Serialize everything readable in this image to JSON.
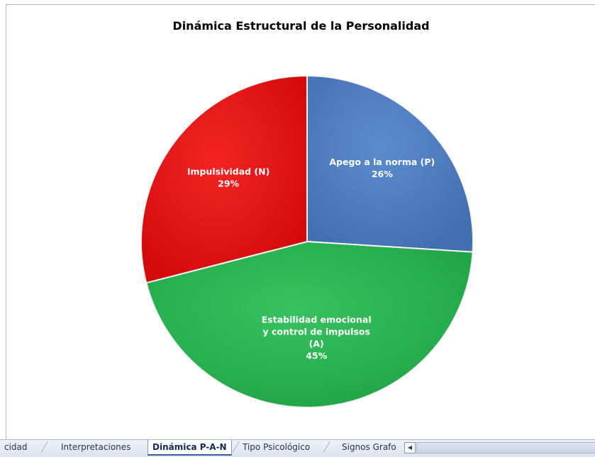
{
  "chart_data": {
    "type": "pie",
    "title": "Dinámica Estructural de la Personalidad",
    "slices": [
      {
        "label_lines": [
          "Apego a la norma (P)"
        ],
        "value": 26,
        "percent_label": "26%",
        "color": "#4a7ec8"
      },
      {
        "label_lines": [
          "Estabilidad emocional",
          "y control de impulsos",
          "(A)"
        ],
        "value": 45,
        "percent_label": "45%",
        "color": "#22ba4e"
      },
      {
        "label_lines": [
          "Impulsividad (N)"
        ],
        "value": 29,
        "percent_label": "29%",
        "color": "#f00b0b"
      }
    ],
    "legend": "none"
  },
  "tabs": [
    {
      "label": "cidad",
      "active": false
    },
    {
      "label": "Interpretaciones",
      "active": false
    },
    {
      "label": "Dinámica P-A-N",
      "active": true
    },
    {
      "label": "Tipo Psicológico",
      "active": false
    },
    {
      "label": "Signos Grafo",
      "active": false
    }
  ],
  "scroll_left_glyph": "◀"
}
